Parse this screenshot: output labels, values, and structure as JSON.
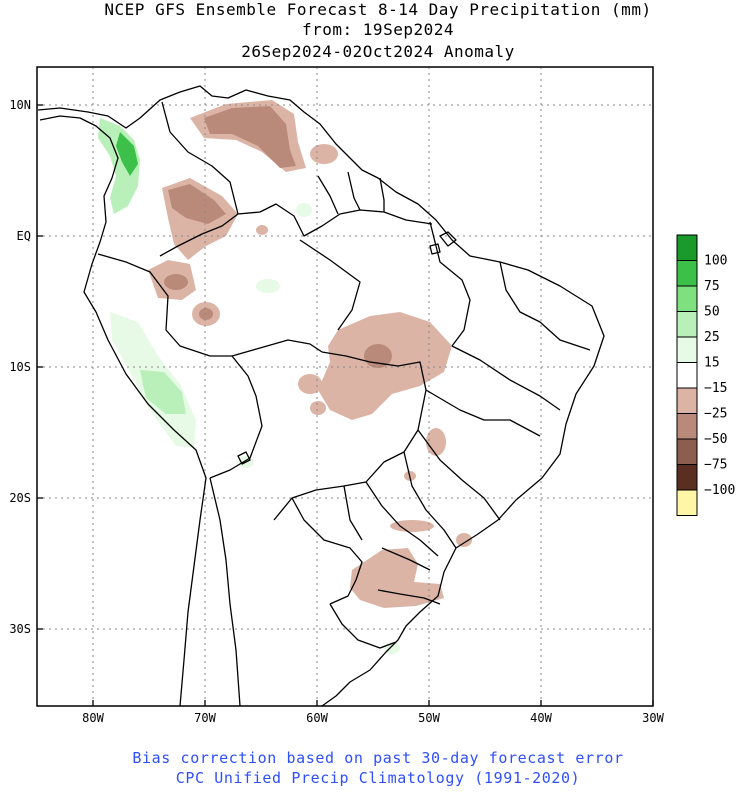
{
  "title": {
    "line1": "NCEP GFS Ensemble Forecast 8-14 Day Precipitation (mm)",
    "line2": "from: 19Sep2024",
    "line3": "26Sep2024-02Oct2024 Anomaly"
  },
  "footer": {
    "line1": "Bias correction based on past 30-day forecast error",
    "line2": "CPC Unified Precip Climatology (1991-2020)"
  },
  "axes": {
    "lat_labels": [
      "10N",
      "EQ",
      "10S",
      "20S",
      "30S"
    ],
    "lon_labels": [
      "80W",
      "70W",
      "60W",
      "50W",
      "40W",
      "30W"
    ]
  },
  "legend": {
    "bins": [
      {
        "label": "100",
        "color": "#1a9a2a"
      },
      {
        "label": "75",
        "color": "#3cc04a"
      },
      {
        "label": "50",
        "color": "#7ee07e"
      },
      {
        "label": "25",
        "color": "#b9f0b9"
      },
      {
        "label": "15",
        "color": "#e6fae6"
      },
      {
        "label": "−15",
        "color": "#ffffff"
      },
      {
        "label": "−25",
        "color": "#dcb4a6"
      },
      {
        "label": "−50",
        "color": "#b98a7a"
      },
      {
        "label": "−75",
        "color": "#8c5e50"
      },
      {
        "label": "−100",
        "color": "#5a2f22"
      },
      {
        "label": "",
        "color": "#fff6a8"
      }
    ]
  },
  "colors": {
    "frame": "#000000",
    "grid": "#8a8a8a",
    "footer_text": "#2f4fff"
  }
}
